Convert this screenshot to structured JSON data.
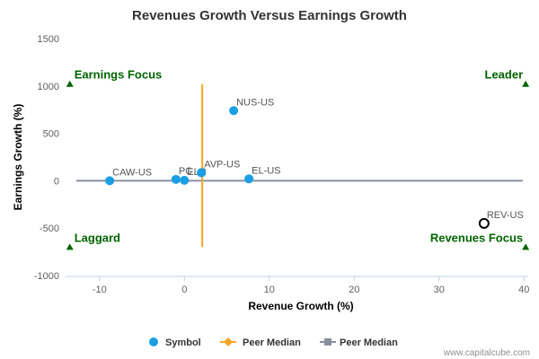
{
  "chart_data": {
    "type": "scatter",
    "title": "Revenues Growth Versus Earnings Growth",
    "xlabel": "Revenue Growth (%)",
    "ylabel": "Earnings Growth (%)",
    "xlim": [
      -14,
      40.5
    ],
    "ylim": [
      -1000,
      1500
    ],
    "x_ticks": [
      -10,
      0,
      10,
      20,
      30,
      40
    ],
    "x_tick_labels": [
      "-10",
      "0",
      "10",
      "20",
      "30",
      "40"
    ],
    "y_ticks": [
      -1000,
      -500,
      0,
      500,
      1000,
      1500
    ],
    "y_tick_labels": [
      "-1000",
      "-500",
      "0",
      "500",
      "1000",
      "1500"
    ],
    "grid": false,
    "series": [
      {
        "name": "Symbol",
        "color": "#1a9fe5",
        "points": [
          {
            "label": "CAW-US",
            "x": -8.8,
            "y": 0
          },
          {
            "label": "PC",
            "x": -1,
            "y": 15
          },
          {
            "label": "ELR",
            "x": 0,
            "y": 5
          },
          {
            "label": "AVP-US",
            "x": 2,
            "y": 85
          },
          {
            "label": "",
            "x": 2,
            "y": 85
          },
          {
            "label": "NUS-US",
            "x": 5.8,
            "y": 740
          },
          {
            "label": "EL-US",
            "x": 7.6,
            "y": 20
          }
        ]
      },
      {
        "name": "",
        "color": "#000000",
        "hollow": true,
        "points": [
          {
            "label": "REV-US",
            "x": 35.3,
            "y": -450
          }
        ]
      }
    ],
    "peer_median_x": {
      "name": "Peer Median",
      "value": 2.1,
      "color": "#f5a623",
      "y_range": [
        -700,
        1020
      ]
    },
    "peer_median_y": {
      "name": "Peer Median",
      "value": 0,
      "color": "#8a8f9e"
    },
    "quadrants": [
      {
        "label": "Earnings Focus",
        "x": -13.5,
        "y": 1020,
        "align": "start"
      },
      {
        "label": "Leader",
        "x": 40.2,
        "y": 1020,
        "align": "end"
      },
      {
        "label": "Laggard",
        "x": -13.5,
        "y": -700,
        "align": "start"
      },
      {
        "label": "Revenues Focus",
        "x": 40.2,
        "y": -700,
        "align": "end"
      }
    ],
    "legend": {
      "position": "bottom"
    }
  },
  "legend": {
    "symbol_label": "Symbol",
    "peer_median_x_label": "Peer Median",
    "peer_median_y_label": "Peer Median"
  },
  "credit": "www.capitalcube.com",
  "colors": {
    "quadrant_text": "#006400",
    "marker_fill": "#1a9fe5",
    "axis_line": "#c0d0e0"
  }
}
